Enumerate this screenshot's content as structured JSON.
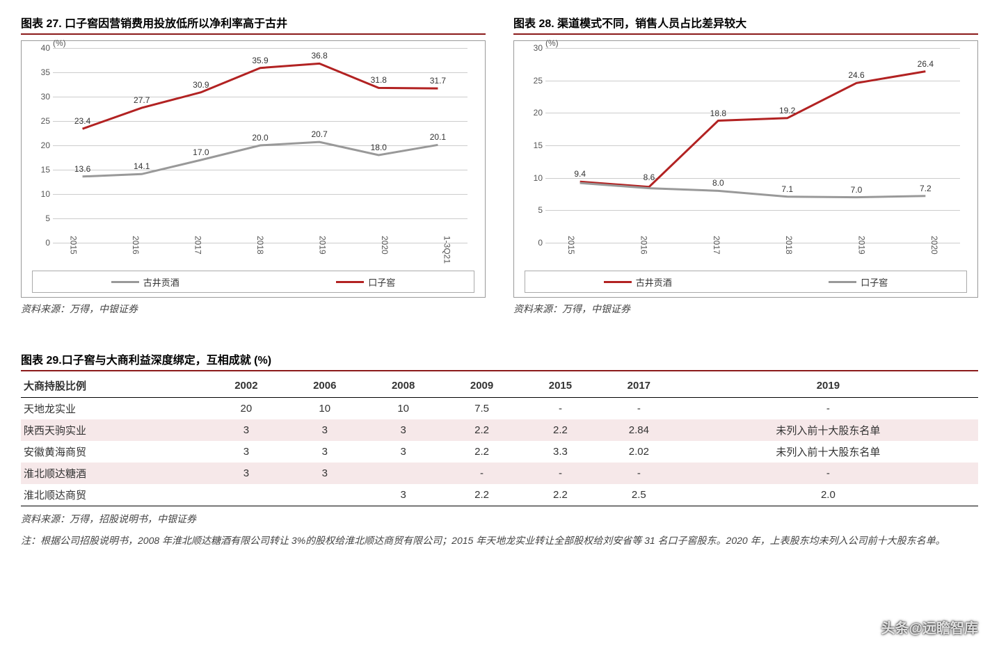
{
  "chart27": {
    "title": "图表 27. 口子窖因营销费用投放低所以净利率高于古井",
    "type": "line",
    "y_unit": "(%)",
    "ylim": [
      0,
      40
    ],
    "ytick_step": 5,
    "categories": [
      "2015",
      "2016",
      "2017",
      "2018",
      "2019",
      "2020",
      "1-3Q21"
    ],
    "series": [
      {
        "name": "古井贡酒",
        "color": "#999999",
        "values": [
          13.6,
          14.1,
          17.0,
          20.0,
          20.7,
          18.0,
          20.1
        ]
      },
      {
        "name": "口子窖",
        "color": "#b22222",
        "values": [
          23.4,
          27.7,
          30.9,
          35.9,
          36.8,
          31.8,
          31.7
        ]
      }
    ],
    "line_width": 3,
    "grid_color": "#cccccc",
    "label_fontsize": 12,
    "source": "资料来源：万得，中银证券"
  },
  "chart28": {
    "title": "图表 28. 渠道模式不同，销售人员占比差异较大",
    "type": "line",
    "y_unit": "(%)",
    "ylim": [
      0,
      30
    ],
    "ytick_step": 5,
    "categories": [
      "2015",
      "2016",
      "2017",
      "2018",
      "2019",
      "2020"
    ],
    "series": [
      {
        "name": "古井贡酒",
        "color": "#b22222",
        "values": [
          9.4,
          8.6,
          18.8,
          19.2,
          24.6,
          26.4
        ]
      },
      {
        "name": "口子窖",
        "color": "#999999",
        "values": [
          9.2,
          8.4,
          8.0,
          7.1,
          7.0,
          7.2
        ]
      }
    ],
    "overlap_labels": [
      {
        "cat_index": 0,
        "text": "9.4",
        "y": 9.4
      },
      {
        "cat_index": 1,
        "text": "8.6",
        "y": 8.9
      }
    ],
    "line_width": 3,
    "grid_color": "#cccccc",
    "label_fontsize": 12,
    "source": "资料来源：万得，中银证券"
  },
  "table29": {
    "title": "图表 29.口子窖与大商利益深度绑定，互相成就 (%)",
    "columns": [
      "大商持股比例",
      "2002",
      "2006",
      "2008",
      "2009",
      "2015",
      "2017",
      "2019"
    ],
    "rows": [
      [
        "天地龙实业",
        "20",
        "10",
        "10",
        "7.5",
        "-",
        "-",
        "-"
      ],
      [
        "陕西天驹实业",
        "3",
        "3",
        "3",
        "2.2",
        "2.2",
        "2.84",
        "未列入前十大股东名单"
      ],
      [
        "安徽黄海商贸",
        "3",
        "3",
        "3",
        "2.2",
        "3.3",
        "2.02",
        "未列入前十大股东名单"
      ],
      [
        "淮北顺达糖酒",
        "3",
        "3",
        "",
        "-",
        "-",
        "-",
        "-"
      ],
      [
        "淮北顺达商贸",
        "",
        "",
        "3",
        "2.2",
        "2.2",
        "2.5",
        "2.0"
      ]
    ],
    "alt_row_color": "#f6e8e9",
    "source": "资料来源：万得，招股说明书，中银证券",
    "note": "注：根据公司招股说明书，2008 年淮北顺达糖酒有限公司转让 3%的股权给淮北顺达商贸有限公司；2015 年天地龙实业转让全部股权给刘安省等 31 名口子窖股东。2020 年，上表股东均未列入公司前十大股东名单。"
  },
  "watermark": "头条@远瞻智库"
}
